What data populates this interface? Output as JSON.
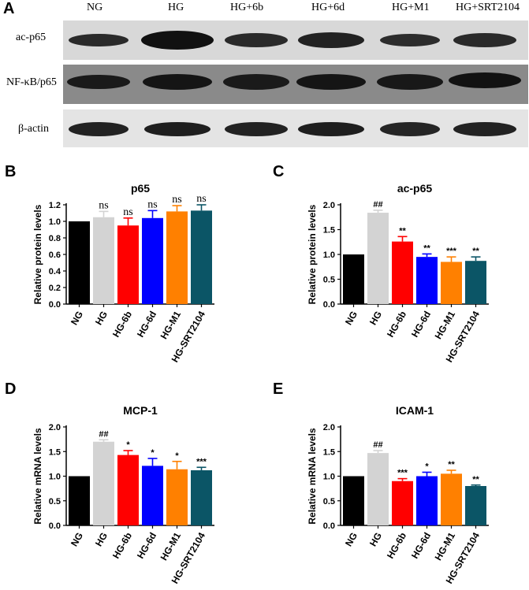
{
  "panel_A": {
    "letter": "A",
    "lanes": [
      "NG",
      "HG",
      "HG+6b",
      "HG+6d",
      "HG+M1",
      "HG+SRT2104"
    ],
    "rows": [
      "ac-p65",
      "NF-κB/p65",
      "β-actin"
    ]
  },
  "colors": [
    "#000000",
    "#d3d3d3",
    "#ff0000",
    "#0000ff",
    "#ff8000",
    "#0b5566"
  ],
  "chart_data": [
    {
      "type": "bar",
      "letter": "B",
      "title": "p65",
      "ylabel": "Relative protein levels",
      "ylim": [
        0,
        1.2
      ],
      "yticks": [
        "0.0",
        "0.2",
        "0.4",
        "0.6",
        "0.8",
        "1.0",
        "1.2"
      ],
      "categories": [
        "NG",
        "HG",
        "HG-6b",
        "HG-6d",
        "HG-M1",
        "HG-SRT2104"
      ],
      "values": [
        1.0,
        1.05,
        0.95,
        1.04,
        1.12,
        1.13
      ],
      "errors": [
        0,
        0.07,
        0.09,
        0.09,
        0.07,
        0.07
      ],
      "annotations": [
        "",
        "ns",
        "ns",
        "ns",
        "ns",
        "ns"
      ]
    },
    {
      "type": "bar",
      "letter": "C",
      "title": "ac-p65",
      "ylabel": "Relative protein levels",
      "ylim": [
        0,
        2.0
      ],
      "yticks": [
        "0.0",
        "0.5",
        "1.0",
        "1.5",
        "2.0"
      ],
      "categories": [
        "NG",
        "HG",
        "HG-6b",
        "HG-6d",
        "HG-M1",
        "HG-SRT2104"
      ],
      "values": [
        1.0,
        1.84,
        1.26,
        0.95,
        0.85,
        0.87
      ],
      "errors": [
        0,
        0.05,
        0.1,
        0.06,
        0.1,
        0.08
      ],
      "annotations": [
        "",
        "##",
        "**",
        "**",
        "***",
        "**"
      ]
    },
    {
      "type": "bar",
      "letter": "D",
      "title": "MCP-1",
      "ylabel": "Relative mRNA levels",
      "ylim": [
        0,
        2.0
      ],
      "yticks": [
        "0.0",
        "0.5",
        "1.0",
        "1.5",
        "2.0"
      ],
      "categories": [
        "NG",
        "HG",
        "HG-6b",
        "HG-6d",
        "HG-M1",
        "HG-SRT2104"
      ],
      "values": [
        1.0,
        1.7,
        1.43,
        1.21,
        1.14,
        1.12
      ],
      "errors": [
        0,
        0.04,
        0.09,
        0.15,
        0.16,
        0.06
      ],
      "annotations": [
        "",
        "##",
        "*",
        "*",
        "*",
        "***"
      ]
    },
    {
      "type": "bar",
      "letter": "E",
      "title": "ICAM-1",
      "ylabel": "Relative mRNA levels",
      "ylim": [
        0,
        2.0
      ],
      "yticks": [
        "0.0",
        "0.5",
        "1.0",
        "1.5",
        "2.0"
      ],
      "categories": [
        "NG",
        "HG",
        "HG-6b",
        "HG-6d",
        "HG-M1",
        "HG-SRT2104"
      ],
      "values": [
        1.0,
        1.47,
        0.9,
        1.0,
        1.05,
        0.8
      ],
      "errors": [
        0,
        0.05,
        0.05,
        0.08,
        0.07,
        0.02
      ],
      "annotations": [
        "",
        "##",
        "***",
        "*",
        "**",
        "**"
      ]
    }
  ]
}
